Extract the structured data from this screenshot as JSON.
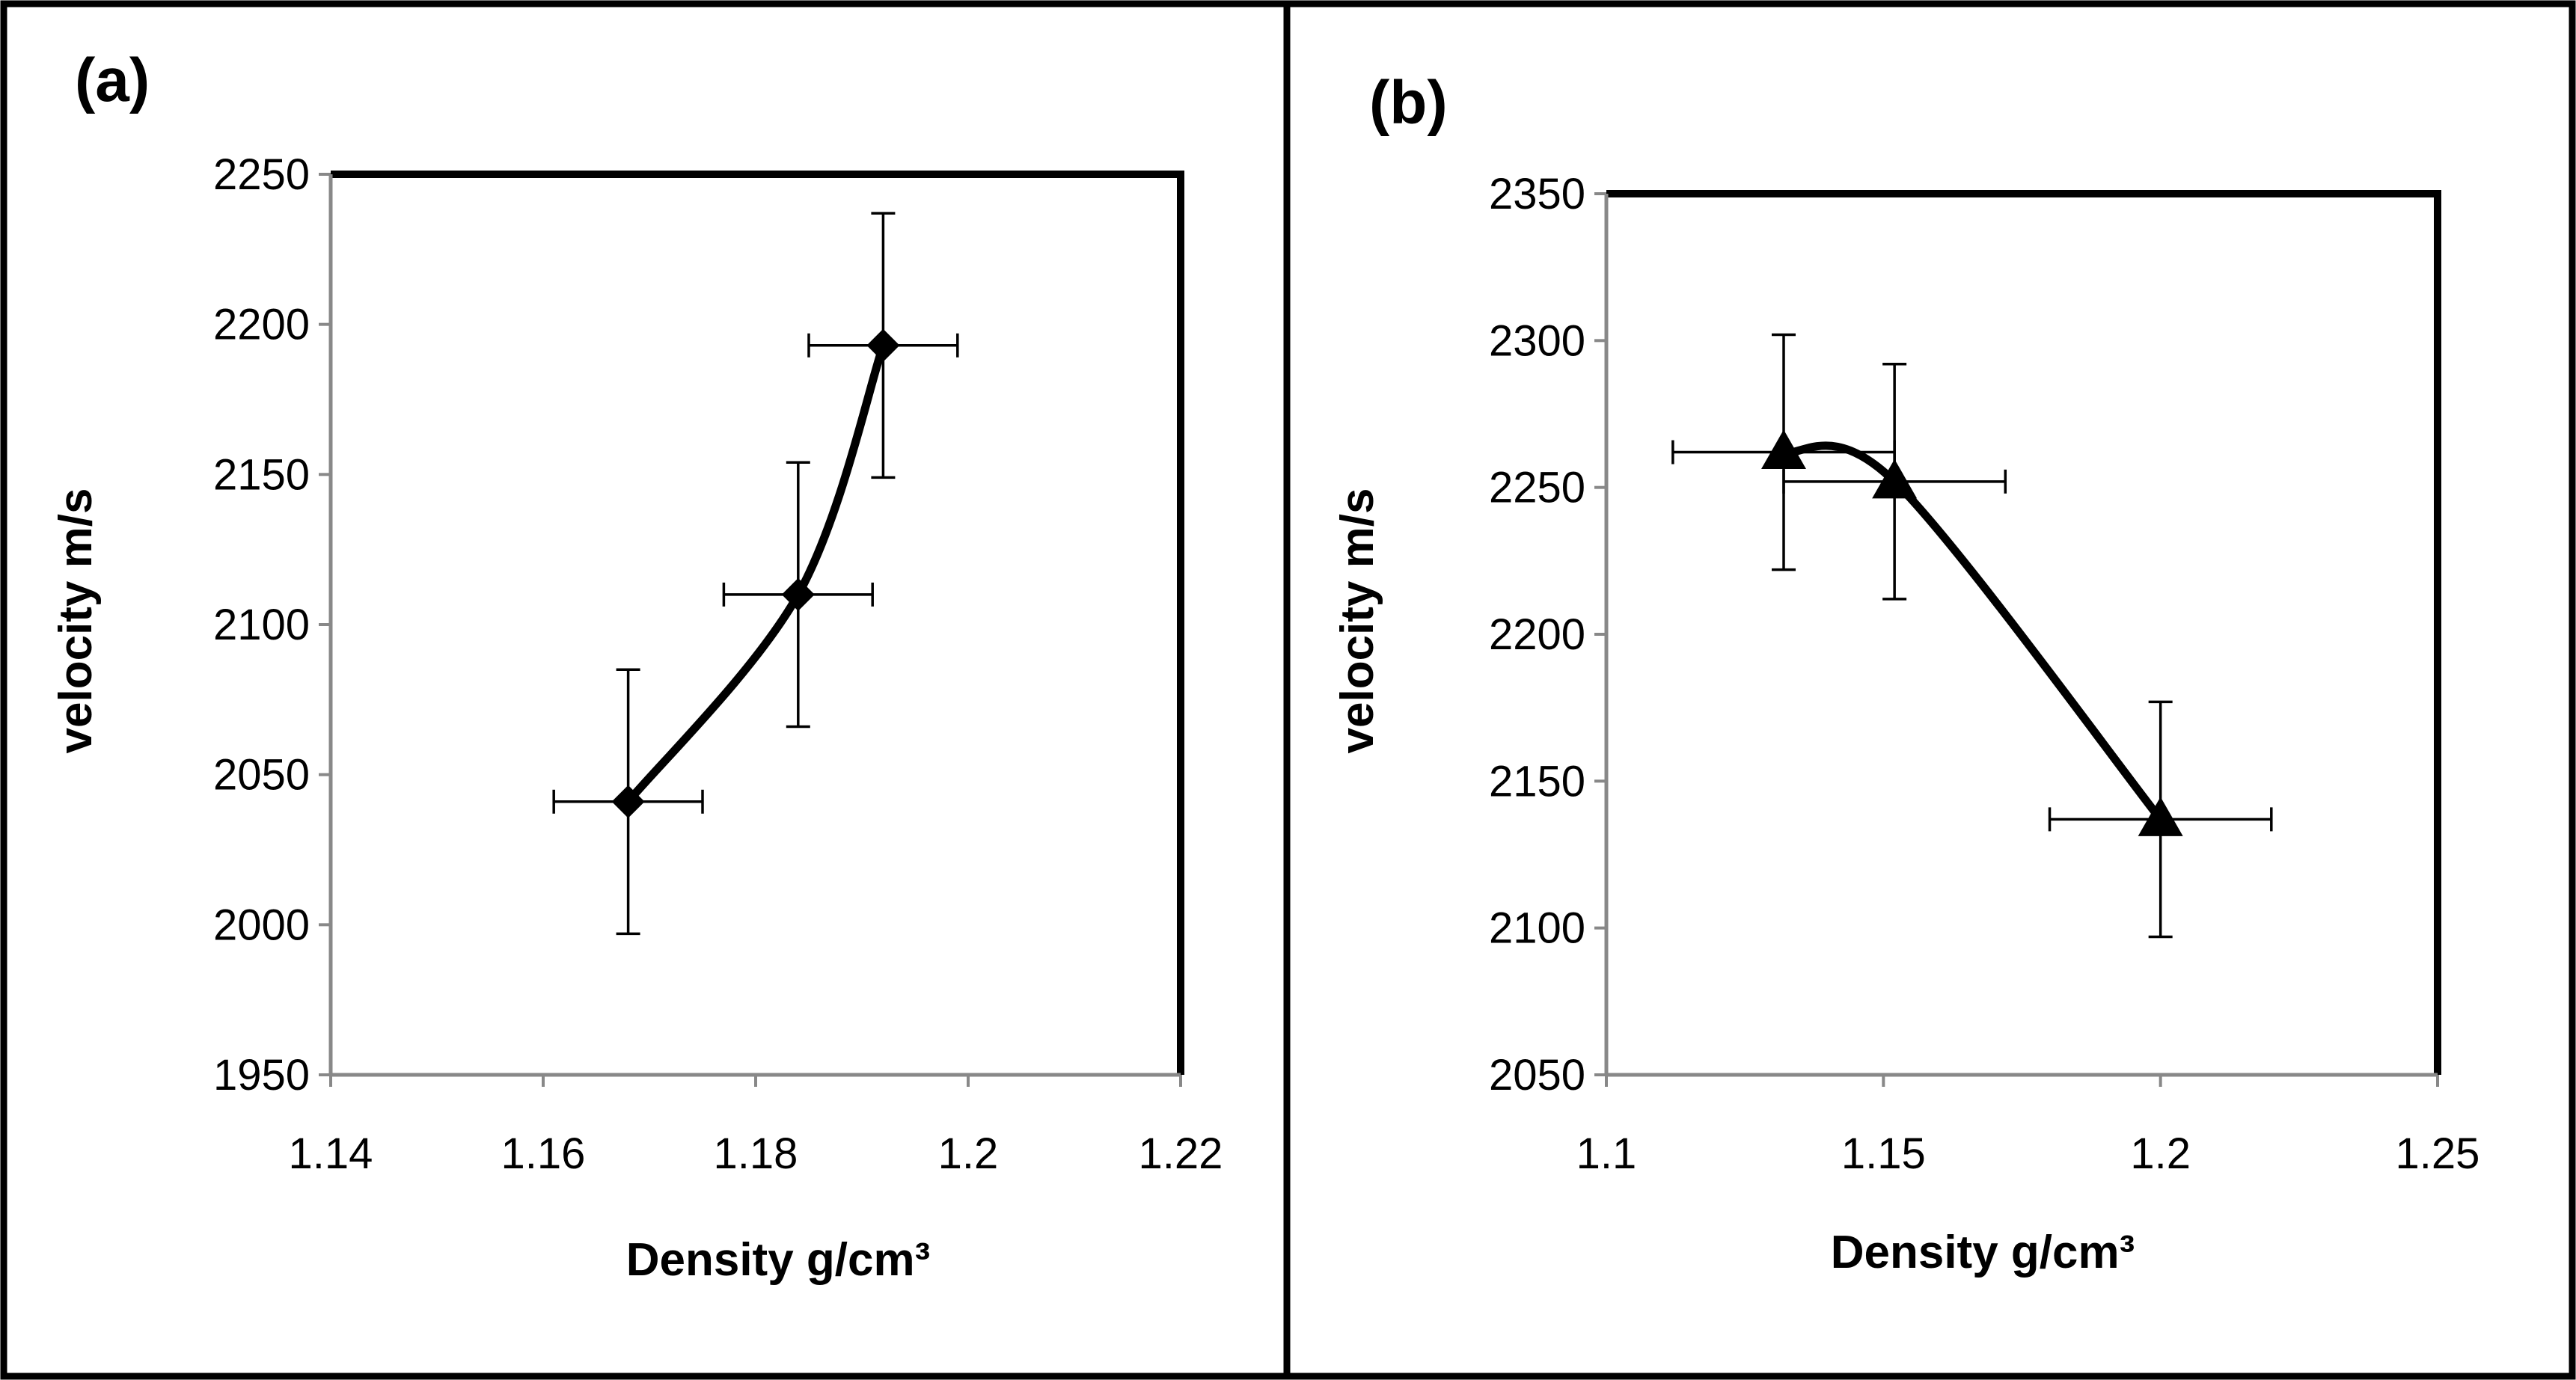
{
  "chart_data": [
    {
      "panel_label": "(a)",
      "type": "line",
      "marker": "diamond",
      "smooth": true,
      "error_bars": true,
      "xlabel": "Density  g/cm³",
      "ylabel": "velocity m/s",
      "xlim": [
        1.14,
        1.22
      ],
      "ylim": [
        1950,
        2250
      ],
      "xticks": [
        1.14,
        1.16,
        1.18,
        1.2,
        1.22
      ],
      "xtick_labels": [
        "1.14",
        "1.16",
        "1.18",
        "1.2",
        "1.22"
      ],
      "yticks": [
        1950,
        2000,
        2050,
        2100,
        2150,
        2200,
        2250
      ],
      "ytick_labels": [
        "1950",
        "2000",
        "2050",
        "2100",
        "2150",
        "2200",
        "2250"
      ],
      "grid": false,
      "points": [
        {
          "x": 1.168,
          "y": 2041,
          "xerr": 0.007,
          "yerr": 44
        },
        {
          "x": 1.184,
          "y": 2110,
          "xerr": 0.007,
          "yerr": 44
        },
        {
          "x": 1.192,
          "y": 2193,
          "xerr": 0.007,
          "yerr": 44
        }
      ]
    },
    {
      "panel_label": "(b)",
      "type": "line",
      "marker": "triangle",
      "smooth": true,
      "error_bars": true,
      "xlabel": "Density  g/cm³",
      "ylabel": "velocity m/s",
      "xlim": [
        1.1,
        1.25
      ],
      "ylim": [
        2050,
        2350
      ],
      "xticks": [
        1.1,
        1.15,
        1.2,
        1.25
      ],
      "xtick_labels": [
        "1.1",
        "1.15",
        "1.2",
        "1.25"
      ],
      "yticks": [
        2050,
        2100,
        2150,
        2200,
        2250,
        2300,
        2350
      ],
      "ytick_labels": [
        "2050",
        "2100",
        "2150",
        "2200",
        "2250",
        "2300",
        "2350"
      ],
      "grid": false,
      "points": [
        {
          "x": 1.132,
          "y": 2262,
          "xerr": 0.02,
          "yerr": 40
        },
        {
          "x": 1.152,
          "y": 2252,
          "xerr": 0.02,
          "yerr": 40
        },
        {
          "x": 1.2,
          "y": 2137,
          "xerr": 0.02,
          "yerr": 40
        }
      ]
    }
  ]
}
